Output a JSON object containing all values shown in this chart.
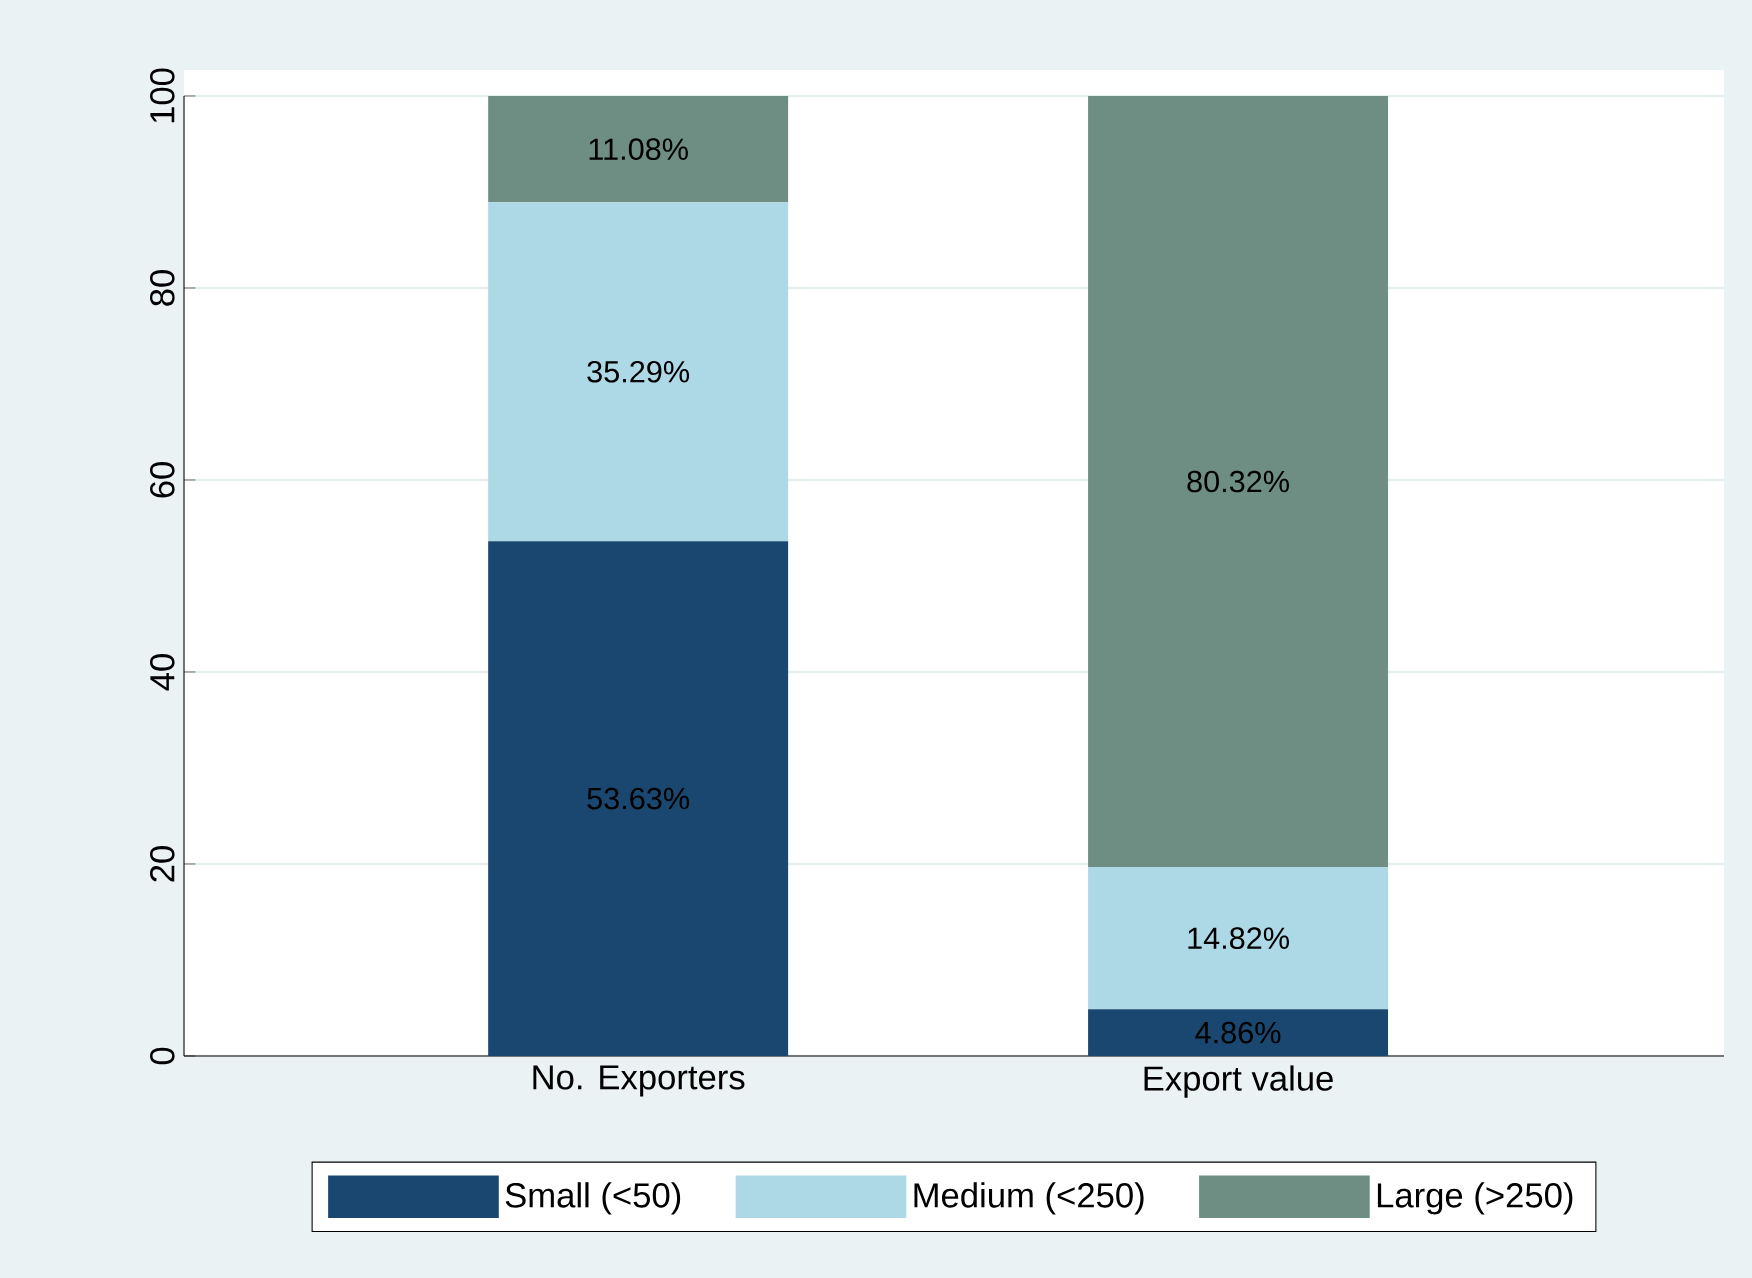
{
  "chart_data": {
    "type": "bar",
    "stacked": true,
    "categories": [
      "No. Exporters",
      "Export value"
    ],
    "series": [
      {
        "name": "Small (<50)",
        "color": "#1a476f",
        "values": [
          53.63,
          4.86
        ],
        "value_labels": [
          "53.63%",
          "4.86%"
        ]
      },
      {
        "name": "Medium (<250)",
        "color": "#add8e6",
        "values": [
          35.29,
          14.82
        ],
        "value_labels": [
          "35.29%",
          "14.82%"
        ]
      },
      {
        "name": "Large (>250)",
        "color": "#6e8e84",
        "values": [
          11.08,
          80.32
        ],
        "value_labels": [
          "11.08%",
          "80.32%"
        ]
      }
    ],
    "ylim": [
      0,
      100
    ],
    "yticks": [
      0,
      20,
      40,
      60,
      80,
      100
    ],
    "grid": "y",
    "legend": "bottom"
  }
}
